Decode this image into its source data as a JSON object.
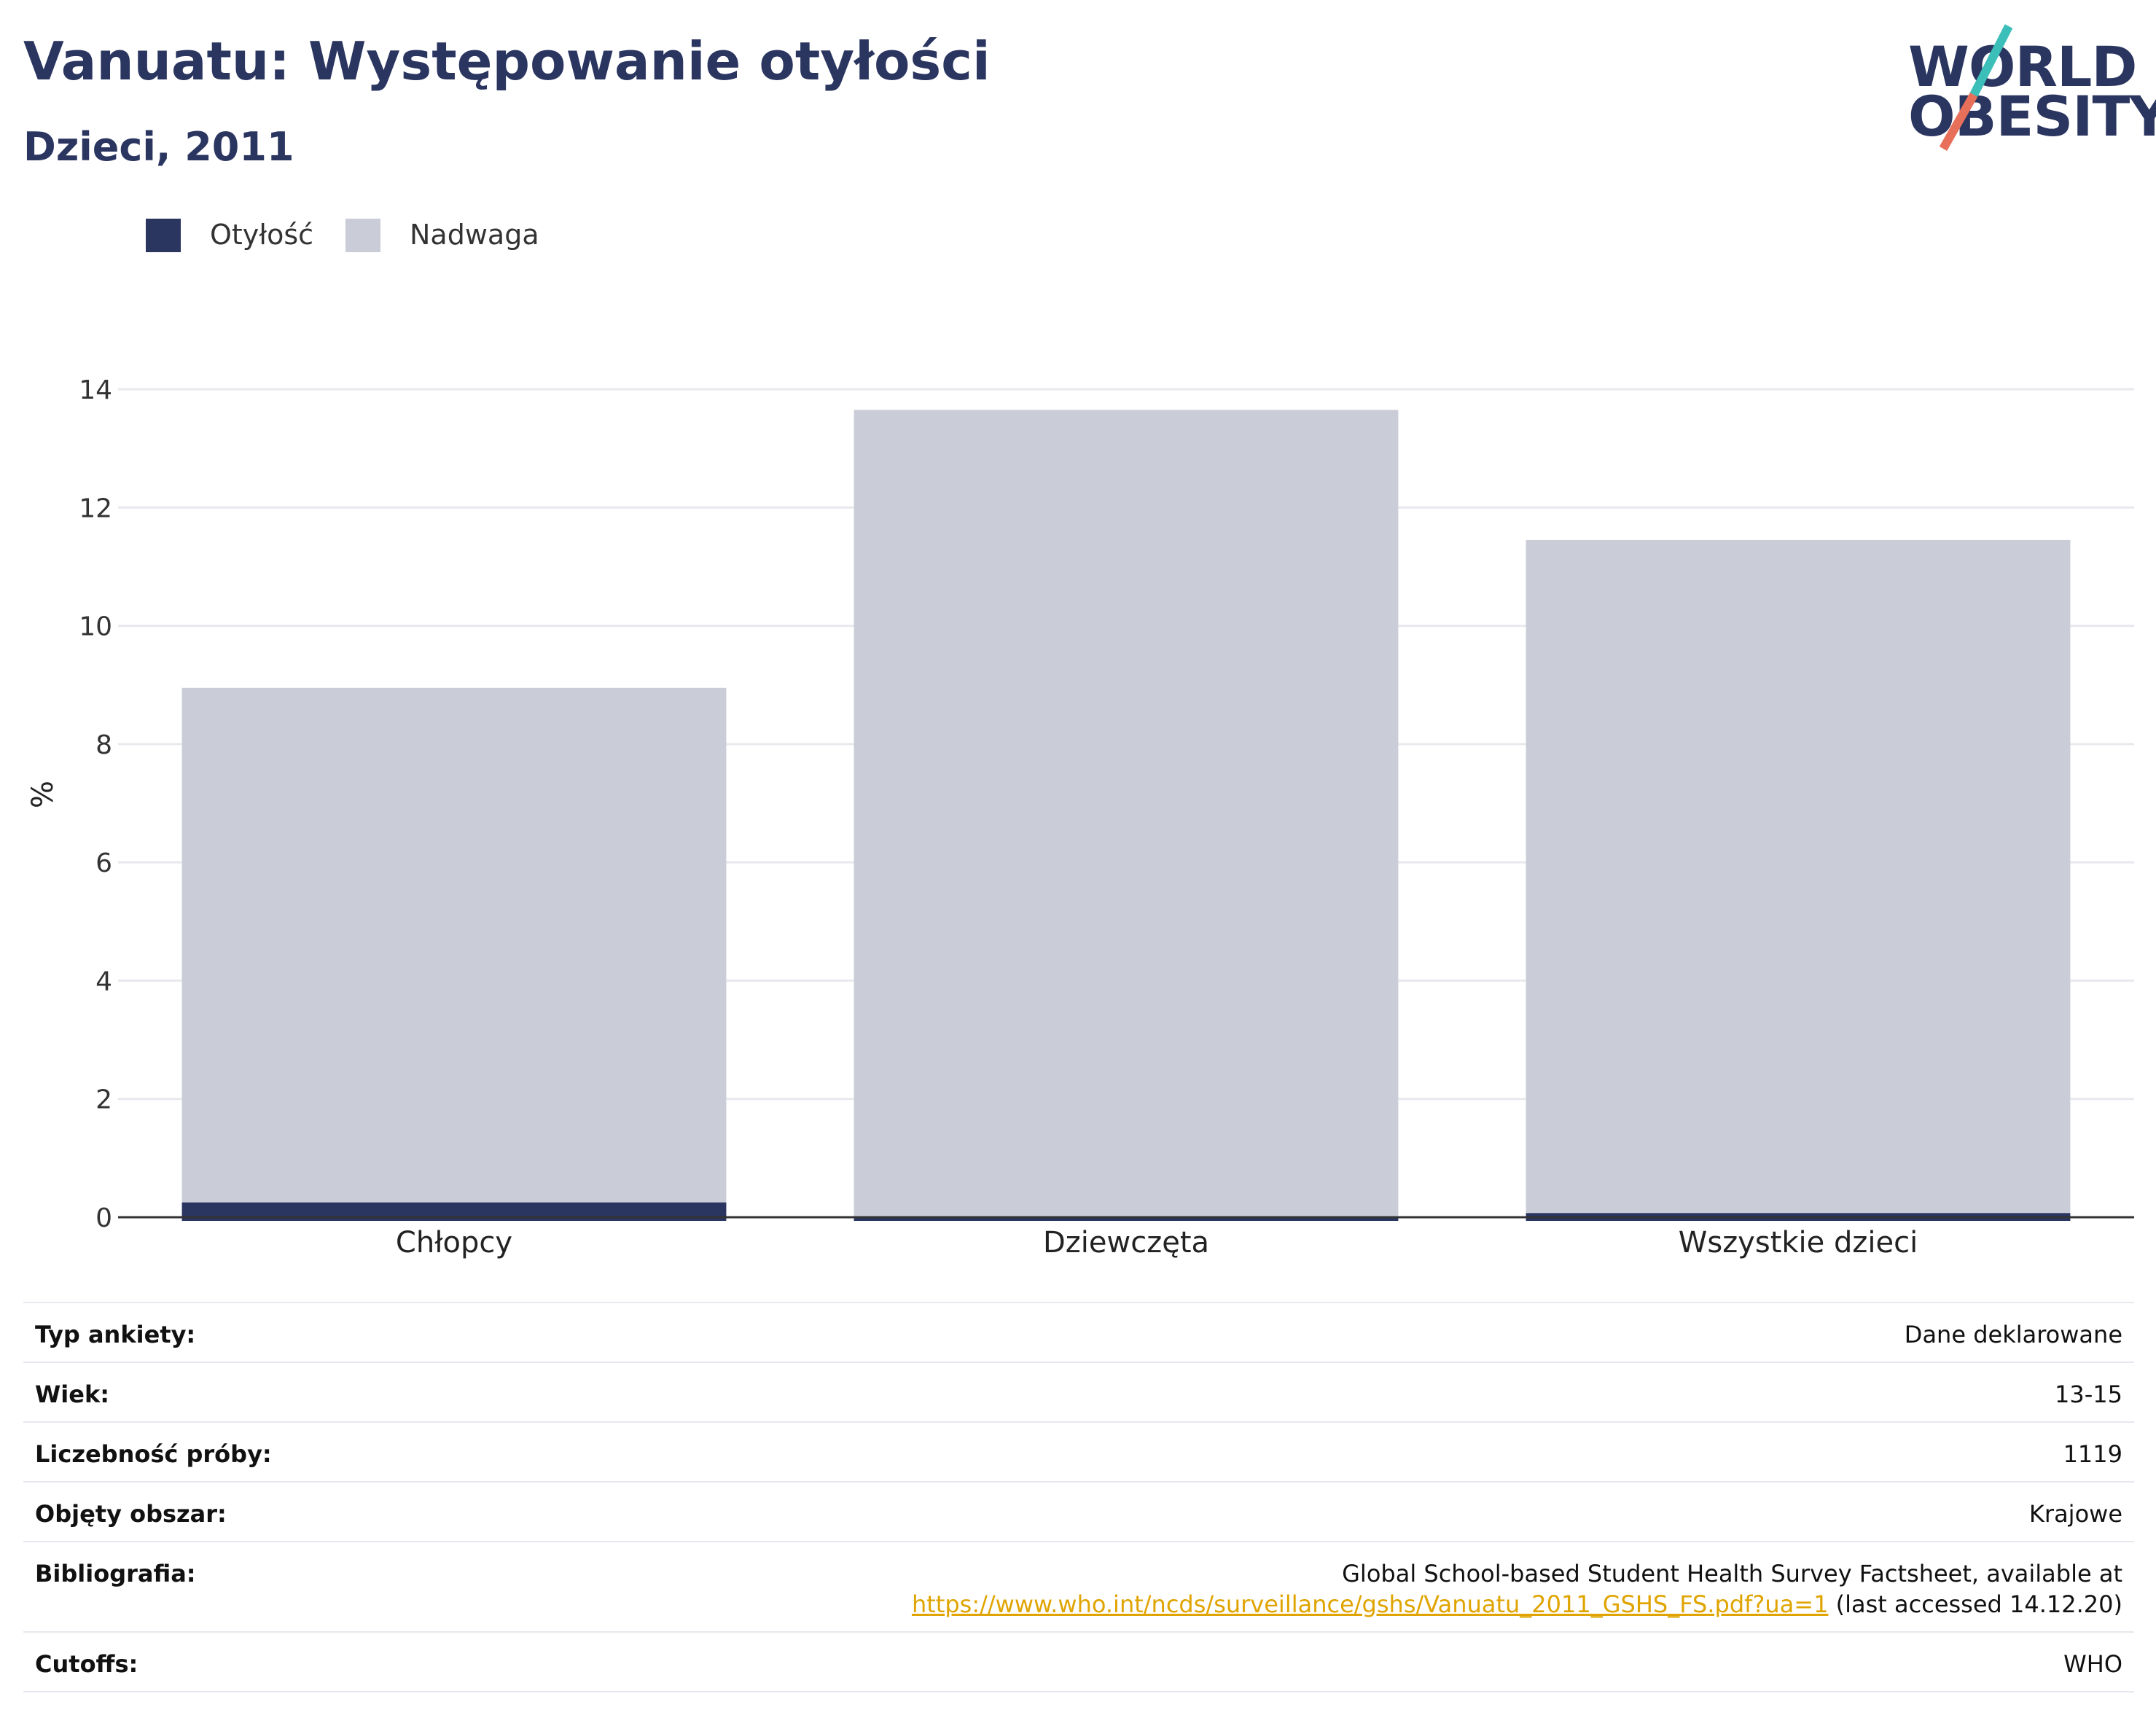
{
  "header": {
    "title": "Vanuatu: Występowanie otyłości",
    "subtitle": "Dzieci, 2011"
  },
  "logo": {
    "line1": "WORLD",
    "line2": "OBESITY",
    "colors": {
      "text": "#2a3560",
      "slash_top": "#3bbfb8",
      "slash_bottom": "#e8705a"
    }
  },
  "chart_data": {
    "type": "bar",
    "stacked": false,
    "categories": [
      "Chłopcy",
      "Dziewczęta",
      "Wszystkie dzieci"
    ],
    "series": [
      {
        "name": "Nadwaga",
        "values": [
          8.95,
          13.65,
          11.45
        ],
        "color": "#caccd7"
      },
      {
        "name": "Otyłość",
        "values": [
          0.25,
          0.0,
          0.07
        ],
        "color": "#2a3560"
      }
    ],
    "legend": [
      {
        "label": "Otyłość",
        "color": "#2a3560"
      },
      {
        "label": "Nadwaga",
        "color": "#caccd7"
      }
    ],
    "legend_position": "top-left",
    "ylabel": "%",
    "ylim": [
      0,
      14
    ],
    "yticks": [
      0,
      2,
      4,
      6,
      8,
      10,
      12,
      14
    ],
    "grid": true
  },
  "info": [
    {
      "key": "Typ ankiety:",
      "value": "Dane deklarowane"
    },
    {
      "key": "Wiek:",
      "value": "13-15"
    },
    {
      "key": "Liczebność próby:",
      "value": "1119"
    },
    {
      "key": "Objęty obszar:",
      "value": "Krajowe"
    },
    {
      "key": "Bibliografia:",
      "value_line1": "Global School-based Student Health Survey Factsheet, available at",
      "link": "https://www.who.int/ncds/surveillance/gshs/Vanuatu_2011_GSHS_FS.pdf?ua=1",
      "suffix": " (last accessed 14.12.20)"
    },
    {
      "key": "Cutoffs:",
      "value": "WHO"
    }
  ]
}
